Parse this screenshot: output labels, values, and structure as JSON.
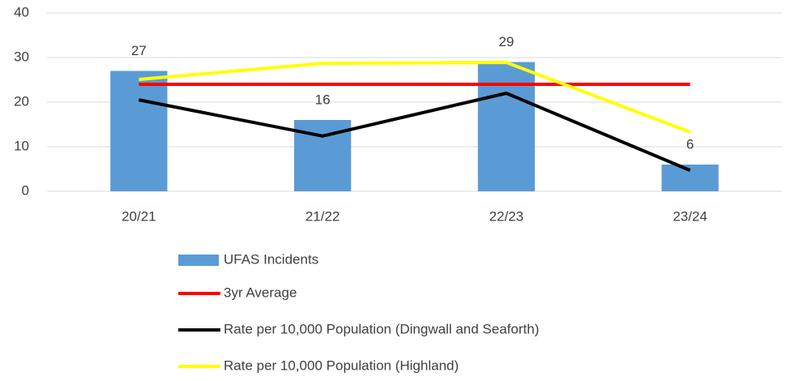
{
  "chart_data": {
    "type": "bar",
    "categories": [
      "20/21",
      "21/22",
      "22/23",
      "23/24"
    ],
    "ylim": [
      0,
      40
    ],
    "yticks": [
      0,
      10,
      20,
      30,
      40
    ],
    "grid": true,
    "series": [
      {
        "name": "UFAS Incidents",
        "type": "bar",
        "color": "#5b9bd5",
        "values": [
          27,
          16,
          29,
          6
        ],
        "show_labels": true
      },
      {
        "name": "3yr Average",
        "type": "line",
        "color": "#ff0000",
        "values": [
          24,
          24,
          24,
          24
        ]
      },
      {
        "name": "Rate per 10,000 Population (Dingwall and Seaforth)",
        "type": "line",
        "color": "#000000",
        "values": [
          20.5,
          12.4,
          22,
          4.7
        ]
      },
      {
        "name": "Rate per 10,000 Population (Highland)",
        "type": "line",
        "color": "#ffff00",
        "values": [
          25.1,
          28.7,
          28.9,
          13.3
        ]
      }
    ]
  }
}
